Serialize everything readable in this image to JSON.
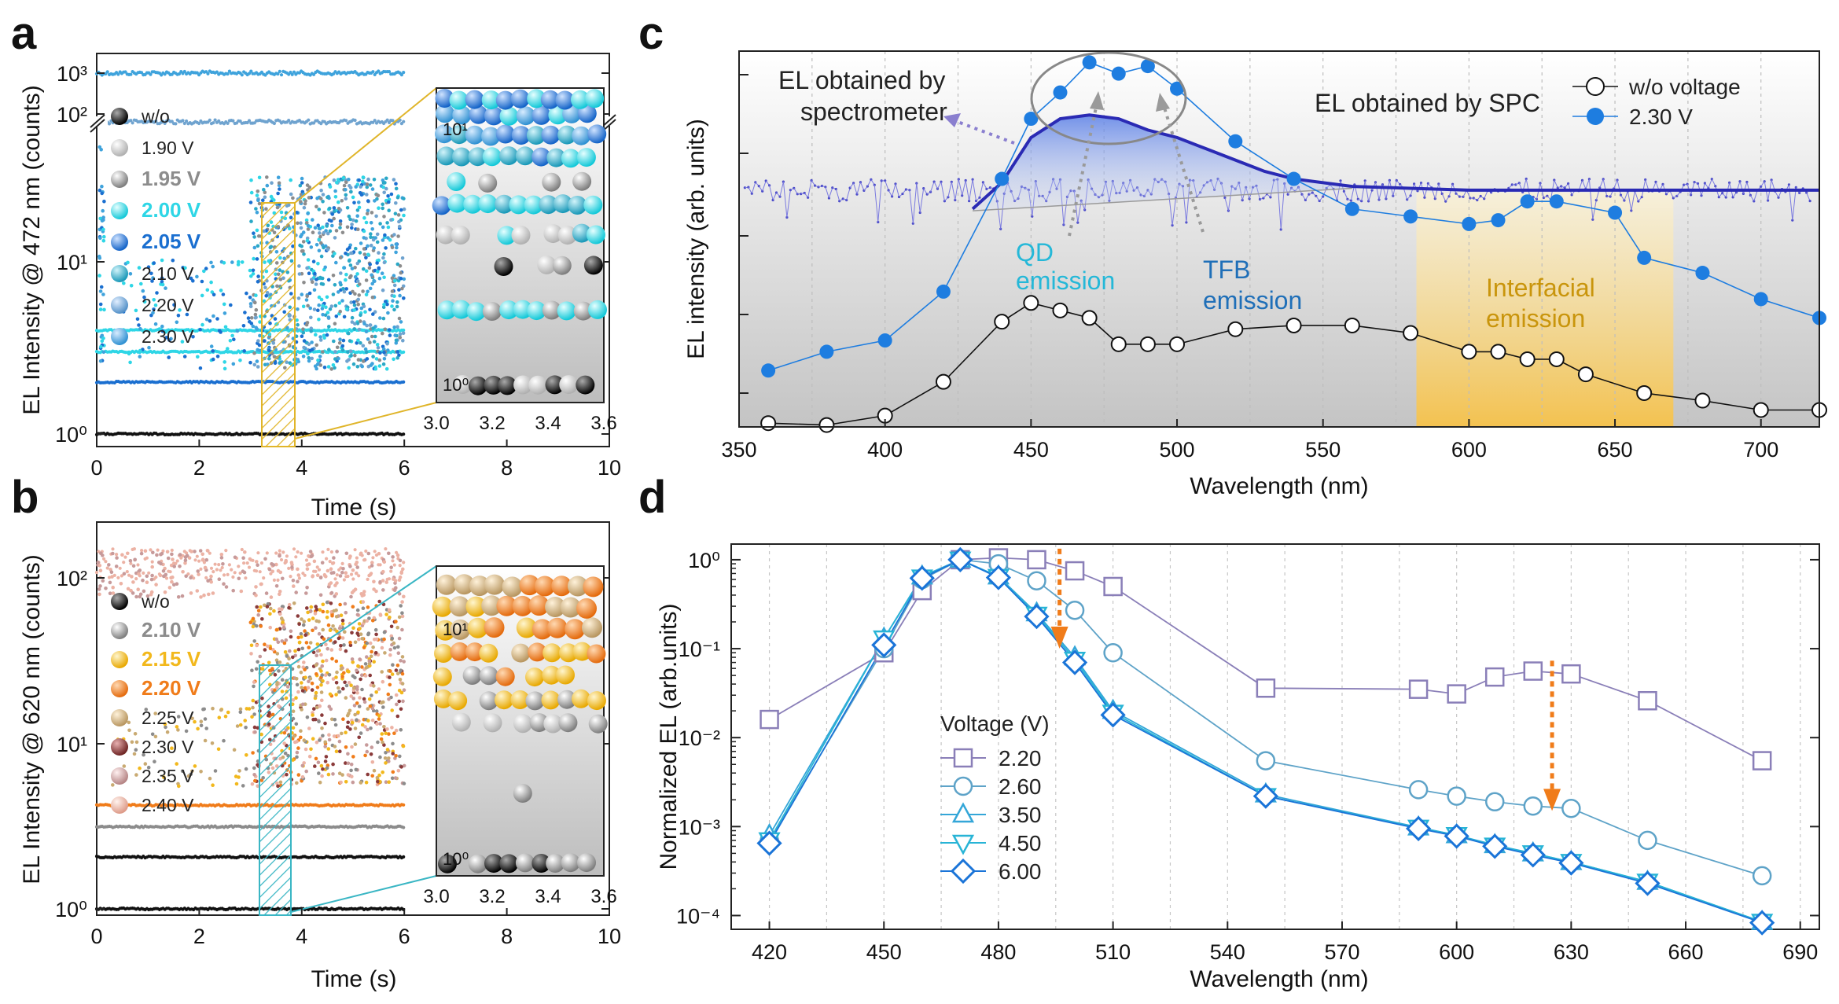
{
  "panels": {
    "a": {
      "label": "a",
      "ylabel": "EL Intensity @ 472 nm (counts)",
      "xlabel": "Time (s)"
    },
    "b": {
      "label": "b",
      "ylabel": "EL Intensity @ 620 nm (counts)",
      "xlabel": "Time (s)"
    },
    "c": {
      "label": "c",
      "ylabel": "EL intensity (arb. units)",
      "xlabel": "Wavelength (nm)"
    },
    "d": {
      "label": "d",
      "ylabel": "Normalized EL (arb.units)",
      "xlabel": "Wavelength (nm)"
    }
  },
  "annotations": {
    "el_spectrometer_line1": "EL obtained by",
    "el_spectrometer_line2": "spectrometer",
    "el_spc": "EL obtained by SPC",
    "qd_line1": "QD",
    "qd_line2": "emission",
    "tfb_line1": "TFB",
    "tfb_line2": "emission",
    "interfacial_line1": "Interfacial",
    "interfacial_line2": "emission",
    "voltage_title": "Voltage (V)"
  },
  "colors": {
    "a_legend": [
      "#111111",
      "#c8c8c8",
      "#8c8c8c",
      "#2ed6e6",
      "#1a6fd0",
      "#2aa8c6",
      "#6fa3cf",
      "#3fa3dc"
    ],
    "b_legend": [
      "#111111",
      "#8c8c8c",
      "#f2b81c",
      "#f07c1a",
      "#c9aa72",
      "#8a3a3a",
      "#c79a9a",
      "#ecb2a4"
    ],
    "c_series": [
      "#111111",
      "#1e7de0"
    ],
    "d_series": [
      "#8a7fb8",
      "#5ea3c8",
      "#34a6d8",
      "#28b4d6",
      "#1a74d8"
    ],
    "arrow": "#f07c1a",
    "interfacial": "#f6c24a"
  },
  "chart_data": [
    {
      "id": "a",
      "type": "scatter",
      "xlabel": "Time (s)",
      "ylabel": "EL Intensity @ 472 nm (counts)",
      "xlim": [
        0,
        10
      ],
      "ylim": [
        1,
        1000
      ],
      "yscale": "log (broken axis)",
      "x_ticks": [
        "0",
        "2",
        "4",
        "6",
        "8",
        "10"
      ],
      "y_ticks": [
        "10⁰",
        "10¹",
        "10²",
        "10³"
      ],
      "legend": [
        "w/o",
        "1.90 V",
        "1.95 V",
        "2.00 V",
        "2.05 V",
        "2.10 V",
        "2.20 V",
        "2.30 V"
      ],
      "bands": [
        {
          "y": 1000,
          "series": "2.30 V"
        },
        {
          "y": 100,
          "series": "2.20 V"
        },
        {
          "y": 4,
          "series": "2.00 V"
        },
        {
          "y": 3,
          "series": "2.00 V"
        },
        {
          "y": 2,
          "series": "2.05 V"
        },
        {
          "y": 1,
          "series": "w/o"
        }
      ],
      "inset": {
        "xlim": [
          3.0,
          3.6
        ],
        "x_ticks": [
          "3.0",
          "3.2",
          "3.4",
          "3.6"
        ],
        "y_ticks": [
          "10⁰",
          "10¹"
        ]
      }
    },
    {
      "id": "b",
      "type": "scatter",
      "xlabel": "Time (s)",
      "ylabel": "EL Intensity @ 620 nm (counts)",
      "xlim": [
        0,
        10
      ],
      "ylim": [
        1,
        150
      ],
      "yscale": "log",
      "x_ticks": [
        "0",
        "2",
        "4",
        "6",
        "8",
        "10"
      ],
      "y_ticks": [
        "10⁰",
        "10¹",
        "10²"
      ],
      "legend": [
        "w/o",
        "2.10 V",
        "2.15 V",
        "2.20 V",
        "2.25 V",
        "2.30 V",
        "2.35 V",
        "2.40 V"
      ],
      "bands": [
        {
          "y": 100,
          "series": "2.40 V"
        },
        {
          "y": 4,
          "series": "2.20 V"
        },
        {
          "y": 3,
          "series": "2.10 V"
        },
        {
          "y": 2,
          "series": "w/o"
        },
        {
          "y": 1,
          "series": "w/o"
        }
      ],
      "inset": {
        "xlim": [
          3.0,
          3.6
        ],
        "x_ticks": [
          "3.0",
          "3.2",
          "3.4",
          "3.6"
        ],
        "y_ticks": [
          "10⁰",
          "10¹"
        ]
      }
    },
    {
      "id": "c",
      "type": "line",
      "xlabel": "Wavelength (nm)",
      "ylabel": "EL intensity (arb. units)",
      "xlim": [
        350,
        720
      ],
      "ylim": [
        0,
        1
      ],
      "yscale": "log (unlabeled)",
      "x_ticks": [
        "350",
        "400",
        "450",
        "500",
        "550",
        "600",
        "650",
        "700"
      ],
      "series": [
        {
          "name": "w/o voltage",
          "x": [
            360,
            380,
            400,
            420,
            440,
            450,
            460,
            470,
            480,
            490,
            500,
            520,
            540,
            560,
            580,
            600,
            610,
            620,
            630,
            640,
            660,
            680,
            700,
            720
          ],
          "y": [
            0.01,
            0.005,
            0.03,
            0.12,
            0.28,
            0.33,
            0.31,
            0.29,
            0.22,
            0.22,
            0.22,
            0.26,
            0.27,
            0.27,
            0.25,
            0.2,
            0.2,
            0.18,
            0.18,
            0.14,
            0.09,
            0.07,
            0.045,
            0.045
          ]
        },
        {
          "name": "2.30 V",
          "x": [
            360,
            380,
            400,
            420,
            440,
            450,
            460,
            470,
            480,
            490,
            500,
            520,
            540,
            560,
            580,
            600,
            610,
            620,
            630,
            650,
            660,
            680,
            700,
            720
          ],
          "y": [
            0.15,
            0.2,
            0.23,
            0.36,
            0.66,
            0.82,
            0.89,
            0.97,
            0.94,
            0.96,
            0.9,
            0.76,
            0.66,
            0.58,
            0.56,
            0.54,
            0.55,
            0.6,
            0.6,
            0.57,
            0.45,
            0.41,
            0.34,
            0.29
          ]
        },
        {
          "name": "EL obtained by spectrometer",
          "x": [
            430,
            440,
            450,
            460,
            470,
            480,
            490,
            500,
            510,
            520,
            530,
            540,
            560,
            600,
            650,
            700,
            720
          ],
          "y": [
            0.58,
            0.65,
            0.77,
            0.82,
            0.83,
            0.82,
            0.79,
            0.77,
            0.74,
            0.71,
            0.68,
            0.66,
            0.64,
            0.63,
            0.63,
            0.63,
            0.63
          ]
        }
      ],
      "legend": [
        "w/o voltage",
        "2.30 V"
      ],
      "highlight_band": {
        "x": [
          582,
          670
        ],
        "label": "Interfacial emission"
      }
    },
    {
      "id": "d",
      "type": "line",
      "xlabel": "Wavelength (nm)",
      "ylabel": "Normalized EL (arb.units)",
      "xlim": [
        410,
        695
      ],
      "ylim": [
        7e-05,
        1.5
      ],
      "yscale": "log",
      "x_ticks": [
        "420",
        "450",
        "480",
        "510",
        "540",
        "570",
        "600",
        "630",
        "660",
        "690"
      ],
      "y_ticks": [
        "10⁻⁴",
        "10⁻³",
        "10⁻²",
        "10⁻¹",
        "10⁰"
      ],
      "legend_title": "Voltage (V)",
      "series": [
        {
          "name": "2.20",
          "marker": "square",
          "x": [
            420,
            450,
            460,
            470,
            480,
            490,
            500,
            510,
            550,
            590,
            600,
            610,
            620,
            630,
            650,
            680
          ],
          "y": [
            0.016,
            0.09,
            0.45,
            1.0,
            1.05,
            1.0,
            0.75,
            0.5,
            0.036,
            0.035,
            0.031,
            0.048,
            0.056,
            0.052,
            0.026,
            0.0055
          ]
        },
        {
          "name": "2.60",
          "marker": "circle",
          "x": [
            420,
            450,
            460,
            470,
            480,
            490,
            500,
            510,
            550,
            590,
            600,
            610,
            620,
            630,
            650,
            680
          ],
          "y": [
            0.0007,
            0.1,
            0.6,
            1.0,
            0.9,
            0.58,
            0.27,
            0.09,
            0.0055,
            0.0026,
            0.0022,
            0.0019,
            0.0017,
            0.0016,
            0.0007,
            0.00028
          ]
        },
        {
          "name": "3.50",
          "marker": "triangle-up",
          "x": [
            420,
            450,
            460,
            470,
            480,
            490,
            500,
            510,
            550,
            590,
            600,
            610,
            620,
            630,
            650,
            680
          ],
          "y": [
            0.0008,
            0.13,
            0.65,
            1.0,
            0.65,
            0.25,
            0.08,
            0.02,
            0.0023,
            0.00098,
            0.0008,
            0.00062,
            0.0005,
            0.0004,
            0.00024,
            8.5e-05
          ]
        },
        {
          "name": "4.50",
          "marker": "triangle-down",
          "x": [
            420,
            450,
            460,
            470,
            480,
            490,
            500,
            510,
            550,
            590,
            600,
            610,
            620,
            630,
            650,
            680
          ],
          "y": [
            0.0007,
            0.13,
            0.63,
            1.0,
            0.64,
            0.24,
            0.075,
            0.019,
            0.0022,
            0.00097,
            0.0008,
            0.00061,
            0.0005,
            0.0004,
            0.00024,
            8.5e-05
          ]
        },
        {
          "name": "6.00",
          "marker": "diamond",
          "x": [
            420,
            450,
            460,
            470,
            480,
            490,
            500,
            510,
            550,
            590,
            600,
            610,
            620,
            630,
            650,
            680
          ],
          "y": [
            0.00065,
            0.11,
            0.62,
            1.0,
            0.63,
            0.23,
            0.07,
            0.018,
            0.0022,
            0.00095,
            0.00078,
            0.0006,
            0.00048,
            0.00039,
            0.00023,
            8.3e-05
          ]
        }
      ],
      "arrows": [
        {
          "x": 496,
          "from": 1.0,
          "to": 0.1
        },
        {
          "x": 625,
          "from": 0.055,
          "to": 0.0015
        }
      ]
    }
  ]
}
